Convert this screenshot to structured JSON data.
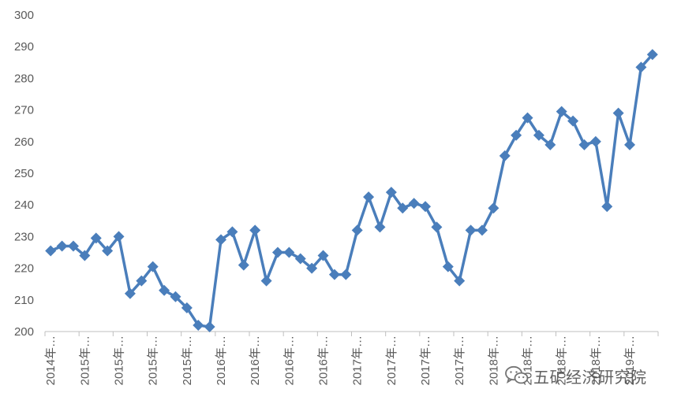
{
  "chart_data": {
    "type": "line",
    "title": "",
    "xlabel": "",
    "ylabel": "",
    "ylim": [
      200,
      300
    ],
    "yticks": [
      200,
      210,
      220,
      230,
      240,
      250,
      260,
      270,
      280,
      290,
      300
    ],
    "grid": false,
    "legend": "none",
    "series_color": "#4a7ebb",
    "x_tick_labels": [
      "2014年…",
      "2015年…",
      "2015年…",
      "2015年…",
      "2015年…",
      "2016年…",
      "2016年…",
      "2016年…",
      "2016年…",
      "2017年…",
      "2017年…",
      "2017年…",
      "2017年…",
      "2018年…",
      "2018年…",
      "2018年…",
      "2018年…",
      "2019年…"
    ],
    "x_tick_every": 3,
    "series": [
      {
        "values": [
          225.5,
          227,
          227,
          224,
          229.5,
          225.5,
          230,
          212,
          216,
          220.5,
          213,
          211,
          207.5,
          202,
          201.5,
          229,
          231.5,
          221,
          232,
          216,
          225,
          225,
          223,
          220,
          224,
          218,
          218,
          232,
          242.5,
          233,
          244,
          239,
          240.5,
          239.5,
          233,
          220.5,
          216,
          232,
          232,
          239,
          255.5,
          262,
          267.5,
          262,
          259,
          269.5,
          266.5,
          259,
          260,
          239.5,
          269,
          259,
          283.5,
          287.5
        ]
      }
    ]
  },
  "watermark": {
    "text": "五矿经济研究院",
    "icon": "wechat-icon"
  }
}
